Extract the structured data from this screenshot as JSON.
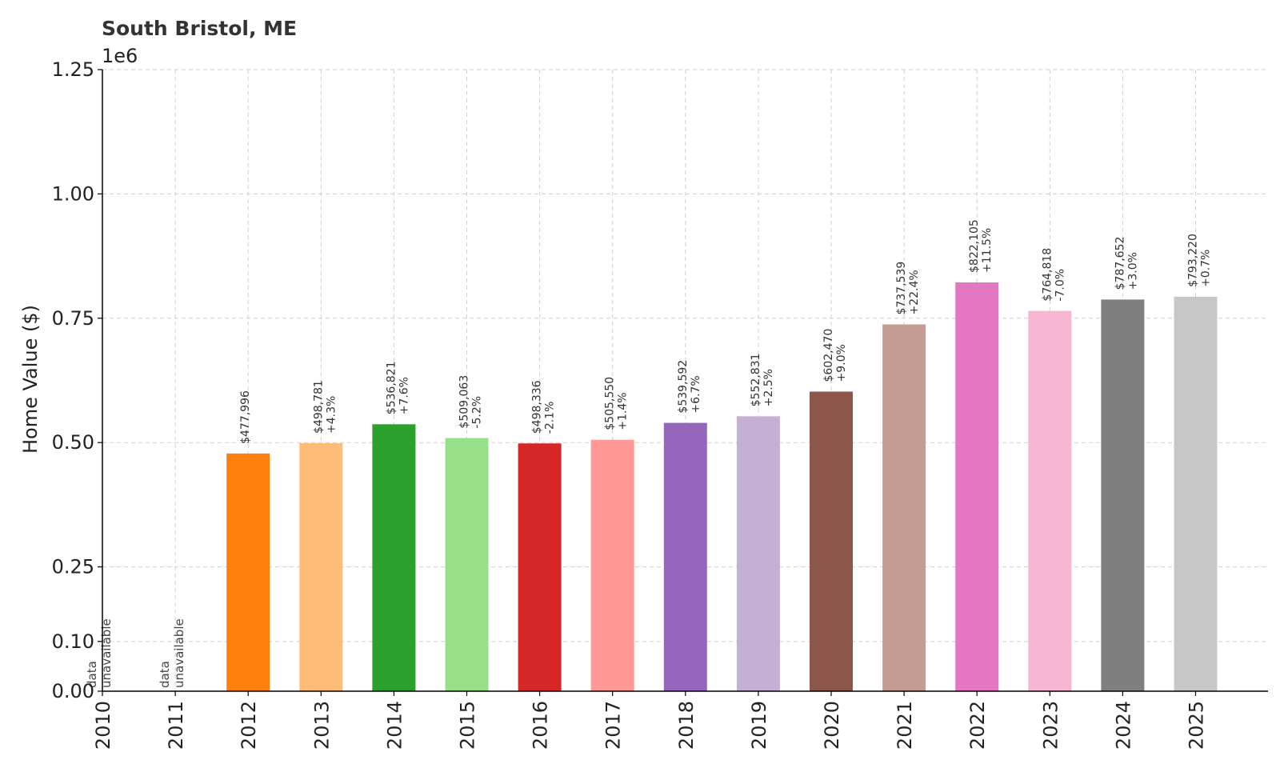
{
  "chart_data": {
    "type": "bar",
    "title": "South Bristol, ME",
    "ylabel": "Home Value ($)",
    "xlabel": "",
    "offset_text": "1e6",
    "ylim": [
      0,
      1250000
    ],
    "yticks": [
      0,
      100000,
      250000,
      500000,
      750000,
      1000000,
      1250000
    ],
    "ytick_labels": [
      "0.00",
      "0.10",
      "0.25",
      "0.50",
      "0.75",
      "1.00",
      "1.25"
    ],
    "grid": true,
    "categories": [
      "2010",
      "2011",
      "2012",
      "2013",
      "2014",
      "2015",
      "2016",
      "2017",
      "2018",
      "2019",
      "2020",
      "2021",
      "2022",
      "2023",
      "2024",
      "2025"
    ],
    "values": [
      null,
      null,
      477996,
      498781,
      536821,
      509063,
      498336,
      505550,
      539592,
      552831,
      602470,
      737539,
      822105,
      764818,
      787652,
      793220
    ],
    "value_labels": [
      "",
      "",
      "$477,996",
      "$498,781",
      "$536,821",
      "$509,063",
      "$498,336",
      "$505,550",
      "$539,592",
      "$552,831",
      "$602,470",
      "$737,539",
      "$822,105",
      "$764,818",
      "$787,652",
      "$793,220"
    ],
    "change_labels": [
      "",
      "",
      "",
      "+4.3%",
      "+7.6%",
      "-5.2%",
      "-2.1%",
      "+1.4%",
      "+6.7%",
      "+2.5%",
      "+9.0%",
      "+22.4%",
      "+11.5%",
      "-7.0%",
      "+3.0%",
      "+0.7%"
    ],
    "unavailable_label": [
      "data",
      "unavailable"
    ],
    "colors": [
      "#1f77b4",
      "#aec7e8",
      "#ff7f0e",
      "#ffbb78",
      "#2ca02c",
      "#98df8a",
      "#d62728",
      "#ff9896",
      "#9467bd",
      "#c5b0d5",
      "#8c564b",
      "#c49c94",
      "#e377c2",
      "#f7b6d2",
      "#7f7f7f",
      "#c7c7c7"
    ]
  }
}
